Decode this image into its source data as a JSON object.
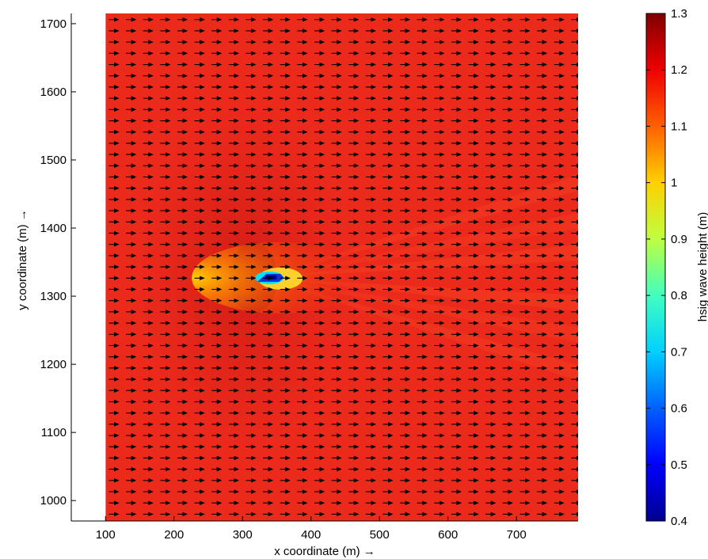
{
  "chart_data": {
    "type": "heatmap",
    "xlabel": "x coordinate (m) →",
    "ylabel": "y coordinate (m) →",
    "colorbar_label": "hsig wave height (m)",
    "colormap": "jet",
    "clim": [
      0.4,
      1.3
    ],
    "xlim": [
      50,
      790
    ],
    "ylim": [
      970,
      1715
    ],
    "x_ticks": [
      100,
      200,
      300,
      400,
      500,
      600,
      700
    ],
    "y_ticks": [
      1000,
      1100,
      1200,
      1300,
      1400,
      1500,
      1600,
      1700
    ],
    "colorbar_ticks": [
      0.4,
      0.5,
      0.6,
      0.7,
      0.8,
      0.9,
      1,
      1.1,
      1.2,
      1.3
    ],
    "domain": {
      "x": [
        100,
        790
      ],
      "y": [
        970,
        1715
      ]
    },
    "background_hsig": 1.2,
    "obstacle": {
      "x": 330,
      "y": 1327,
      "hsig_min": 0.4
    },
    "shadow_zone": {
      "x_start": 330,
      "y_center": 1327,
      "hsig": 1.0
    },
    "vector_field": {
      "direction": "positive x",
      "x_spacing": 25,
      "y_spacing": 16.5
    },
    "grid": false
  }
}
